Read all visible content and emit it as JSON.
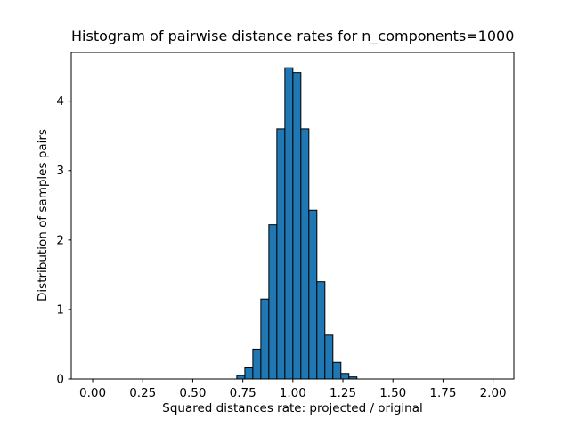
{
  "chart_data": {
    "type": "bar",
    "subtype": "histogram",
    "title": "Histogram of pairwise distance rates for n_components=1000",
    "xlabel": "Squared distances rate: projected / original",
    "ylabel": "Distribution of samples pairs",
    "bins": {
      "width": 0.04,
      "edges": [
        0.72,
        0.76,
        0.8,
        0.84,
        0.88,
        0.92,
        0.96,
        1.0,
        1.04,
        1.08,
        1.12,
        1.16,
        1.2,
        1.24,
        1.28,
        1.32
      ]
    },
    "values": [
      0.05,
      0.16,
      0.43,
      1.15,
      2.22,
      3.6,
      4.48,
      4.41,
      3.6,
      2.43,
      1.4,
      0.63,
      0.24,
      0.08,
      0.03
    ],
    "xticks": {
      "values": [
        0.0,
        0.25,
        0.5,
        0.75,
        1.0,
        1.25,
        1.5,
        1.75,
        2.0
      ],
      "labels": [
        "0.00",
        "0.25",
        "0.50",
        "0.75",
        "1.00",
        "1.25",
        "1.50",
        "1.75",
        "2.00"
      ]
    },
    "yticks": {
      "values": [
        0,
        1,
        2,
        3,
        4
      ],
      "labels": [
        "0",
        "1",
        "2",
        "3",
        "4"
      ]
    },
    "xlim": [
      -0.107,
      2.104
    ],
    "ylim": [
      0,
      4.7
    ],
    "grid": false,
    "legend": null,
    "colors": {
      "bar_fill": "#1f77b4",
      "bar_edge": "#000000",
      "axis": "#000000",
      "text": "#000000",
      "background": "#ffffff"
    }
  }
}
